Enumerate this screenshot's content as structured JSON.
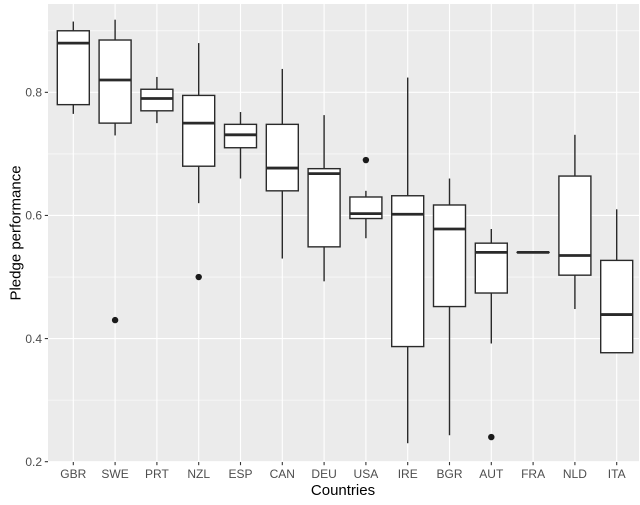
{
  "chart_data": {
    "type": "boxplot",
    "title": "",
    "xlabel": "Countries",
    "ylabel": "Pledge performance",
    "categories": [
      "GBR",
      "SWE",
      "PRT",
      "NZL",
      "ESP",
      "CAN",
      "DEU",
      "USA",
      "IRE",
      "BGR",
      "AUT",
      "FRA",
      "NLD",
      "ITA"
    ],
    "boxes": [
      {
        "category": "GBR",
        "whisker_low": 0.765,
        "q1": 0.78,
        "median": 0.88,
        "q3": 0.9,
        "whisker_high": 0.915,
        "outliers": []
      },
      {
        "category": "SWE",
        "whisker_low": 0.73,
        "q1": 0.75,
        "median": 0.82,
        "q3": 0.885,
        "whisker_high": 0.918,
        "outliers": [
          0.43
        ]
      },
      {
        "category": "PRT",
        "whisker_low": 0.75,
        "q1": 0.77,
        "median": 0.79,
        "q3": 0.805,
        "whisker_high": 0.825,
        "outliers": []
      },
      {
        "category": "NZL",
        "whisker_low": 0.62,
        "q1": 0.68,
        "median": 0.75,
        "q3": 0.795,
        "whisker_high": 0.88,
        "outliers": [
          0.5
        ]
      },
      {
        "category": "ESP",
        "whisker_low": 0.66,
        "q1": 0.71,
        "median": 0.731,
        "q3": 0.748,
        "whisker_high": 0.768,
        "outliers": []
      },
      {
        "category": "CAN",
        "whisker_low": 0.53,
        "q1": 0.64,
        "median": 0.677,
        "q3": 0.748,
        "whisker_high": 0.838,
        "outliers": []
      },
      {
        "category": "DEU",
        "whisker_low": 0.493,
        "q1": 0.549,
        "median": 0.668,
        "q3": 0.676,
        "whisker_high": 0.763,
        "outliers": []
      },
      {
        "category": "USA",
        "whisker_low": 0.563,
        "q1": 0.595,
        "median": 0.603,
        "q3": 0.63,
        "whisker_high": 0.64,
        "outliers": [
          0.69
        ]
      },
      {
        "category": "IRE",
        "whisker_low": 0.23,
        "q1": 0.387,
        "median": 0.602,
        "q3": 0.632,
        "whisker_high": 0.824,
        "outliers": []
      },
      {
        "category": "BGR",
        "whisker_low": 0.243,
        "q1": 0.452,
        "median": 0.578,
        "q3": 0.617,
        "whisker_high": 0.66,
        "outliers": []
      },
      {
        "category": "AUT",
        "whisker_low": 0.392,
        "q1": 0.474,
        "median": 0.54,
        "q3": 0.555,
        "whisker_high": 0.578,
        "outliers": [
          0.24
        ]
      },
      {
        "category": "FRA",
        "whisker_low": 0.54,
        "q1": 0.54,
        "median": 0.54,
        "q3": 0.54,
        "whisker_high": 0.54,
        "outliers": []
      },
      {
        "category": "NLD",
        "whisker_low": 0.448,
        "q1": 0.503,
        "median": 0.535,
        "q3": 0.664,
        "whisker_high": 0.731,
        "outliers": []
      },
      {
        "category": "ITA",
        "whisker_low": 0.377,
        "q1": 0.377,
        "median": 0.439,
        "q3": 0.527,
        "whisker_high": 0.61,
        "outliers": []
      }
    ],
    "y_axis": {
      "tick_values": [
        0.2,
        0.4,
        0.6,
        0.8
      ],
      "tick_labels": [
        "0.2",
        "0.4",
        "0.6",
        "0.8"
      ],
      "minor_tick_values": [
        0.3,
        0.5,
        0.7,
        0.9
      ],
      "range": [
        0.1995,
        0.9435
      ]
    },
    "layout_hints": {
      "grid": "on",
      "legend": "none",
      "panel_background": "gray",
      "gridline_color": "white"
    },
    "style": {
      "panel_bg": "#EBEBEB",
      "grid_color": "#FFFFFF",
      "box_stroke": "#2A2A2A",
      "box_fill": "#FFFFFF",
      "outlier_fill": "#1A1A1A",
      "tick_label_color": "#4D4D4D",
      "tick_mark_color": "#333333",
      "axis_title_color": "#000000"
    }
  }
}
